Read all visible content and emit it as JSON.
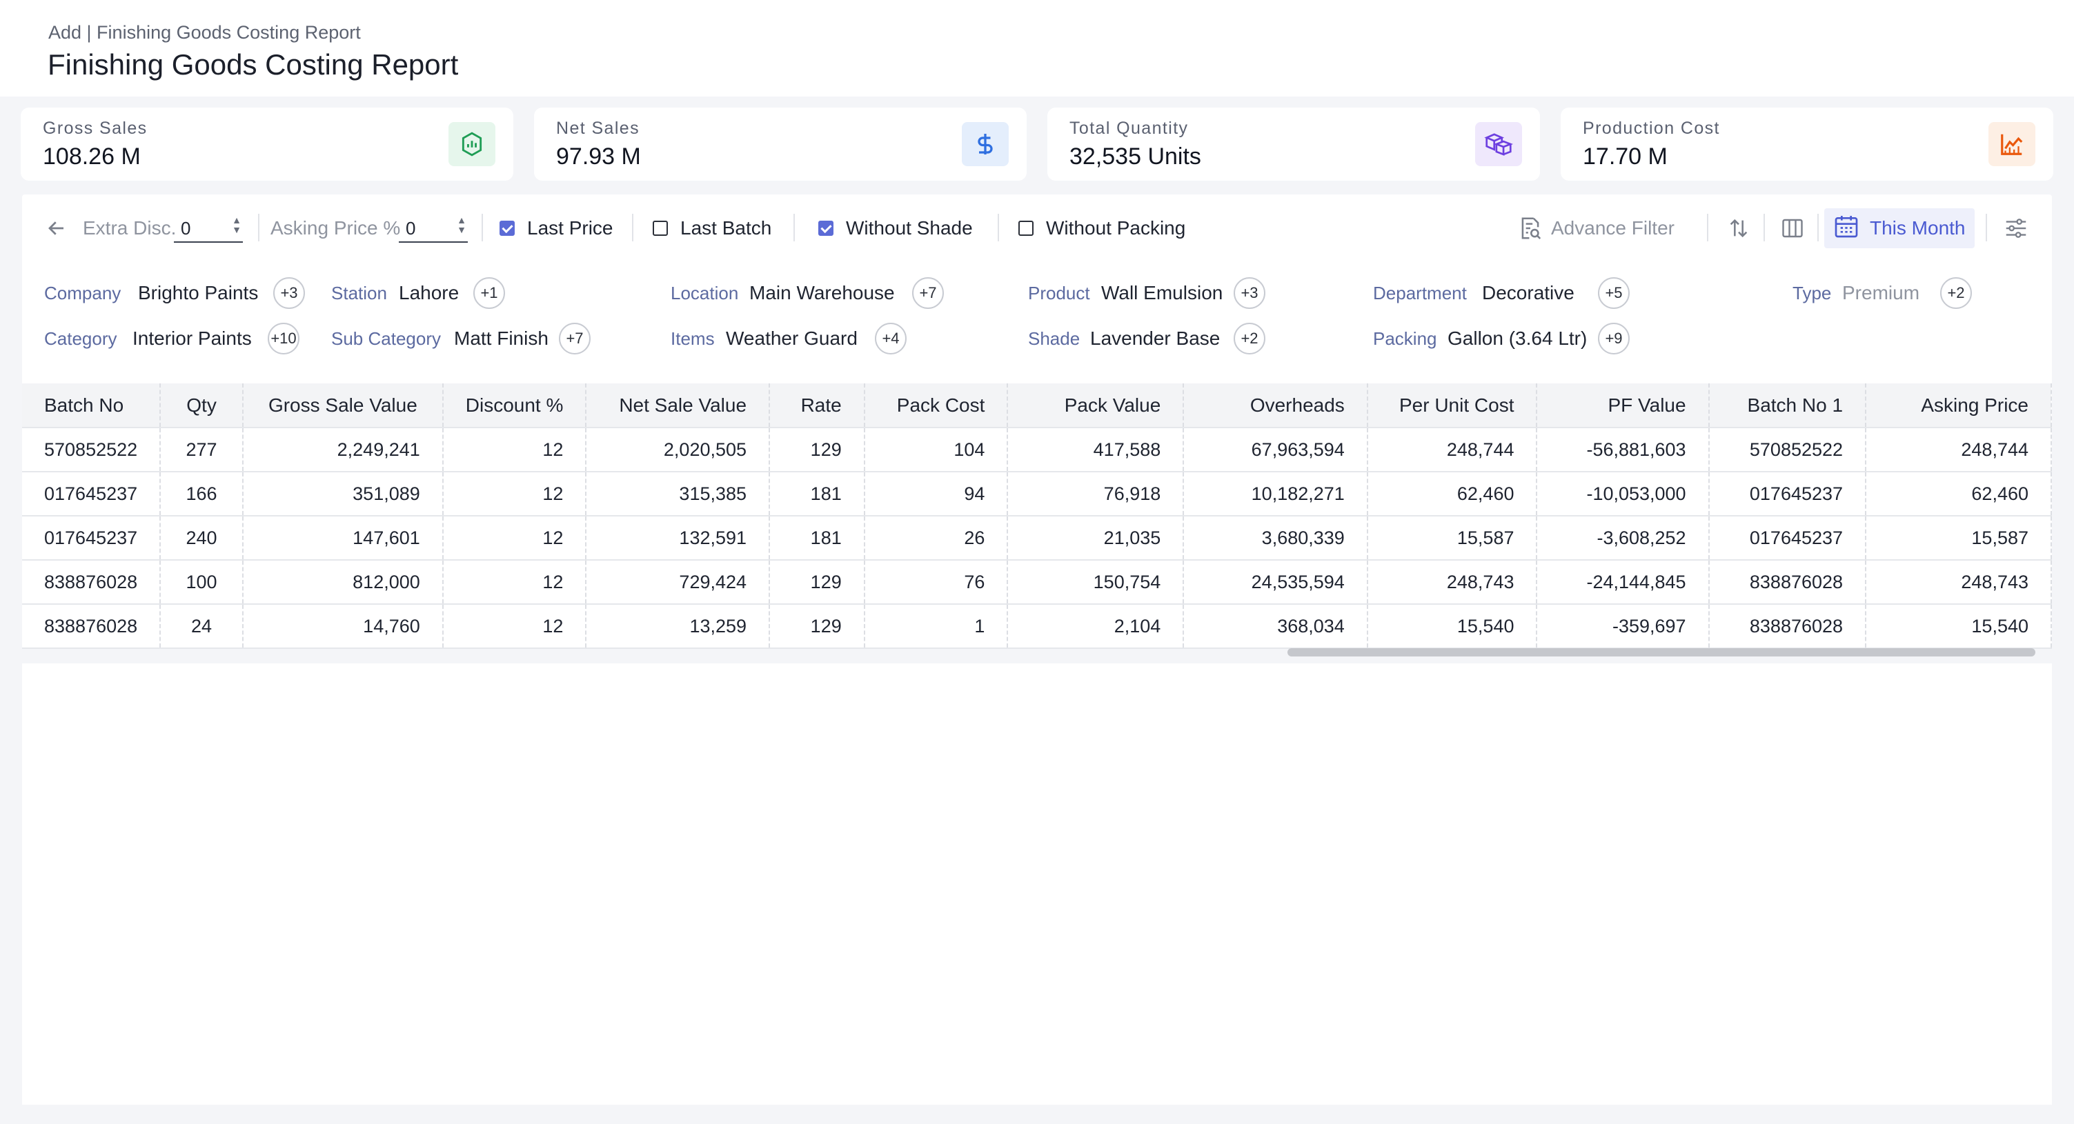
{
  "header": {
    "breadcrumb": "Add | Finishing Goods Costing Report",
    "title": "Finishing Goods Costing Report"
  },
  "cards": [
    {
      "label": "Gross Sales",
      "value": "108.26 M",
      "icon": "chart-shield-icon",
      "color": "#1f9d55"
    },
    {
      "label": "Net Sales",
      "value": "97.93 M",
      "icon": "dollar-icon",
      "color": "#2f6fe0"
    },
    {
      "label": "Total Quantity",
      "value": "32,535 Units",
      "icon": "boxes-icon",
      "color": "#6d3fe0"
    },
    {
      "label": "Production Cost",
      "value": "17.70 M",
      "icon": "line-chart-icon",
      "color": "#ea580c"
    }
  ],
  "toolbar": {
    "extra_disc_label": "Extra Disc.",
    "extra_disc_value": "0",
    "asking_price_label": "Asking Price %",
    "asking_price_value": "0",
    "last_price": "Last Price",
    "last_batch": "Last Batch",
    "without_shade": "Without Shade",
    "without_packing": "Without Packing",
    "advance_filter": "Advance Filter",
    "this_month": "This Month",
    "checks": {
      "last_price": true,
      "last_batch": false,
      "without_shade": true,
      "without_packing": false
    }
  },
  "filters": {
    "company": {
      "label": "Company",
      "value": "Brighto Paints",
      "extra": "+3"
    },
    "station": {
      "label": "Station",
      "value": "Lahore",
      "extra": "+1"
    },
    "location": {
      "label": "Location",
      "value": "Main Warehouse",
      "extra": "+7"
    },
    "product": {
      "label": "Product",
      "value": "Wall Emulsion",
      "extra": "+3"
    },
    "department": {
      "label": "Department",
      "value": "Decorative",
      "extra": "+5"
    },
    "type": {
      "label": "Type",
      "value": "Premium",
      "extra": "+2"
    },
    "category": {
      "label": "Category",
      "value": "Interior Paints",
      "extra": "+10"
    },
    "sub_category": {
      "label": "Sub Category",
      "value": "Matt Finish",
      "extra": "+7"
    },
    "items": {
      "label": "Items",
      "value": "Weather Guard",
      "extra": "+4"
    },
    "shade": {
      "label": "Shade",
      "value": "Lavender Base",
      "extra": "+2"
    },
    "packing": {
      "label": "Packing",
      "value": "Gallon (3.64 Ltr)",
      "extra": "+9"
    }
  },
  "table": {
    "columns": [
      "Batch No",
      "Qty",
      "Gross Sale Value",
      "Discount %",
      "Net Sale Value",
      "Rate",
      "Pack Cost",
      "Pack Value",
      "Overheads",
      "Per Unit Cost",
      "PF Value",
      "Batch No 1",
      "Asking Price"
    ],
    "rows": [
      [
        "570852522",
        "277",
        "2,249,241",
        "12",
        "2,020,505",
        "129",
        "104",
        "417,588",
        "67,963,594",
        "248,744",
        "-56,881,603",
        "570852522",
        "248,744"
      ],
      [
        "017645237",
        "166",
        "351,089",
        "12",
        "315,385",
        "181",
        "94",
        "76,918",
        "10,182,271",
        "62,460",
        "-10,053,000",
        "017645237",
        "62,460"
      ],
      [
        "017645237",
        "240",
        "147,601",
        "12",
        "132,591",
        "181",
        "26",
        "21,035",
        "3,680,339",
        "15,587",
        "-3,608,252",
        "017645237",
        "15,587"
      ],
      [
        "838876028",
        "100",
        "812,000",
        "12",
        "729,424",
        "129",
        "76",
        "150,754",
        "24,535,594",
        "248,743",
        "-24,144,845",
        "838876028",
        "248,743"
      ],
      [
        "838876028",
        "24",
        "14,760",
        "12",
        "13,259",
        "129",
        "1",
        "2,104",
        "368,034",
        "15,540",
        "-359,697",
        "838876028",
        "15,540"
      ]
    ]
  }
}
